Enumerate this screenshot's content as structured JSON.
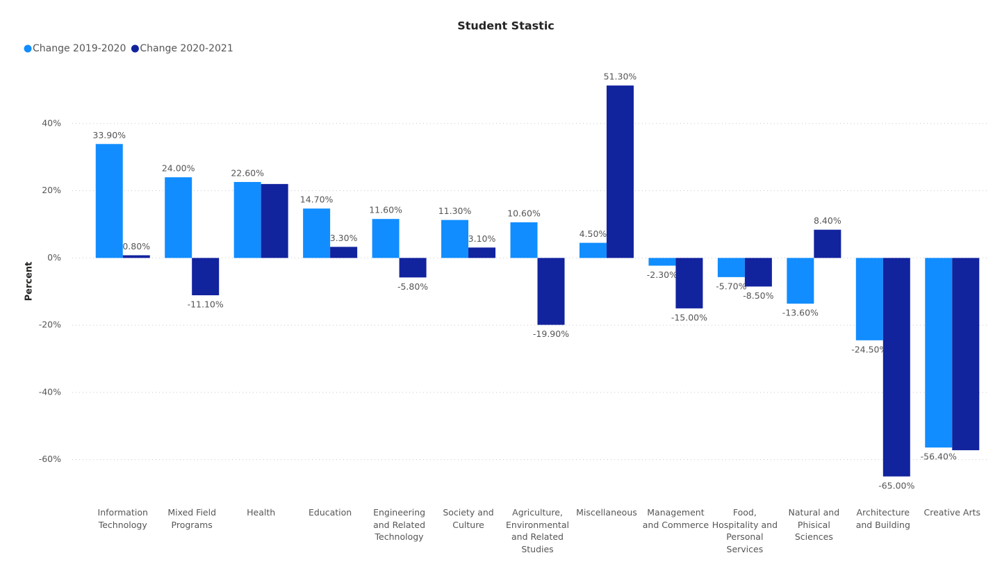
{
  "chart_data": {
    "type": "bar",
    "title": "Student Stastic",
    "y_label": "Percent",
    "categories": [
      "Information Technology",
      "Mixed Field Programs",
      "Health",
      "Education",
      "Engineering and Related Technology",
      "Society and Culture",
      "Agriculture, Environmental and Related Studies",
      "Miscellaneous",
      "Management and Commerce",
      "Food, Hospitality and Personal Services",
      "Natural and Phisical Sciences",
      "Architecture and Building",
      "Creative Arts"
    ],
    "series": [
      {
        "name": "Change 2019-2020",
        "color": "#118dff",
        "values": [
          33.9,
          24.0,
          22.6,
          14.7,
          11.6,
          11.3,
          10.6,
          4.5,
          -2.3,
          -5.7,
          -13.6,
          -24.5,
          -56.4
        ],
        "value_labels": [
          "33.90%",
          "24.00%",
          "22.60%",
          "14.70%",
          "11.60%",
          "11.30%",
          "10.60%",
          "4.50%",
          "-2.30%",
          "-5.70%",
          "-13.60%",
          "-24.50%",
          "-56.40%"
        ]
      },
      {
        "name": "Change 2020-2021",
        "color": "#12239e",
        "values": [
          0.8,
          -11.1,
          22.0,
          3.3,
          -5.8,
          3.1,
          -19.9,
          51.3,
          -15.0,
          -8.5,
          8.4,
          -65.0,
          -57.2
        ],
        "value_labels": [
          "0.80%",
          "-11.10%",
          null,
          "3.30%",
          "-5.80%",
          "3.10%",
          "-19.90%",
          "51.30%",
          "-15.00%",
          "-8.50%",
          "8.40%",
          "-65.00%",
          null
        ]
      }
    ],
    "ylim": [
      -70,
      60
    ],
    "yticks": [
      {
        "value": -60,
        "label": "-60%"
      },
      {
        "value": -40,
        "label": "-40%"
      },
      {
        "value": -20,
        "label": "-20%"
      },
      {
        "value": 0,
        "label": "0%"
      },
      {
        "value": 20,
        "label": "20%"
      },
      {
        "value": 40,
        "label": "40%"
      }
    ],
    "grid": true,
    "legend": "top-left"
  }
}
